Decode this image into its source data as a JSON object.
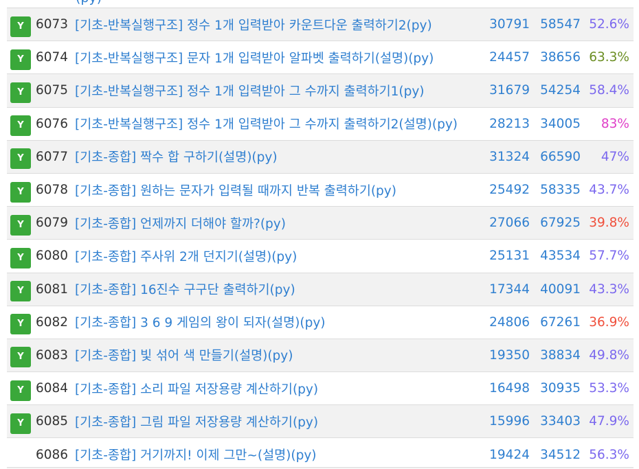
{
  "cut_text": "(py)",
  "badge_label": "Y",
  "rows": [
    {
      "id": "6073",
      "title": "[기초-반복실행구조] 정수 1개 입력받아 카운트다운 출력하기2(py)",
      "solved": "30791",
      "submitted": "58547",
      "rate": "52.6%",
      "rate_color": "#7b68ee",
      "badge": true
    },
    {
      "id": "6074",
      "title": "[기초-반복실행구조] 문자 1개 입력받아 알파벳 출력하기(설명)(py)",
      "solved": "24457",
      "submitted": "38656",
      "rate": "63.3%",
      "rate_color": "#6b8e23",
      "badge": true
    },
    {
      "id": "6075",
      "title": "[기초-반복실행구조] 정수 1개 입력받아 그 수까지 출력하기1(py)",
      "solved": "31679",
      "submitted": "54254",
      "rate": "58.4%",
      "rate_color": "#7b68ee",
      "badge": true
    },
    {
      "id": "6076",
      "title": "[기초-반복실행구조] 정수 1개 입력받아 그 수까지 출력하기2(설명)(py)",
      "solved": "28213",
      "submitted": "34005",
      "rate": "83%",
      "rate_color": "#e040c8",
      "badge": true
    },
    {
      "id": "6077",
      "title": "[기초-종합] 짝수 합 구하기(설명)(py)",
      "solved": "31324",
      "submitted": "66590",
      "rate": "47%",
      "rate_color": "#7b68ee",
      "badge": true
    },
    {
      "id": "6078",
      "title": "[기초-종합] 원하는 문자가 입력될 때까지 반복 출력하기(py)",
      "solved": "25492",
      "submitted": "58335",
      "rate": "43.7%",
      "rate_color": "#7b68ee",
      "badge": true
    },
    {
      "id": "6079",
      "title": "[기초-종합] 언제까지 더해야 할까?(py)",
      "solved": "27066",
      "submitted": "67925",
      "rate": "39.8%",
      "rate_color": "#f0503c",
      "badge": true
    },
    {
      "id": "6080",
      "title": "[기초-종합] 주사위 2개 던지기(설명)(py)",
      "solved": "25131",
      "submitted": "43534",
      "rate": "57.7%",
      "rate_color": "#7b68ee",
      "badge": true
    },
    {
      "id": "6081",
      "title": "[기초-종합] 16진수 구구단 출력하기(py)",
      "solved": "17344",
      "submitted": "40091",
      "rate": "43.3%",
      "rate_color": "#7b68ee",
      "badge": true
    },
    {
      "id": "6082",
      "title": "[기초-종합] 3 6 9 게임의 왕이 되자(설명)(py)",
      "solved": "24806",
      "submitted": "67261",
      "rate": "36.9%",
      "rate_color": "#f0503c",
      "badge": true
    },
    {
      "id": "6083",
      "title": "[기초-종합] 빛 섞어 색 만들기(설명)(py)",
      "solved": "19350",
      "submitted": "38834",
      "rate": "49.8%",
      "rate_color": "#7b68ee",
      "badge": true
    },
    {
      "id": "6084",
      "title": "[기초-종합] 소리 파일 저장용량 계산하기(py)",
      "solved": "16498",
      "submitted": "30935",
      "rate": "53.3%",
      "rate_color": "#7b68ee",
      "badge": true
    },
    {
      "id": "6085",
      "title": "[기초-종합] 그림 파일 저장용량 계산하기(py)",
      "solved": "15996",
      "submitted": "33403",
      "rate": "47.9%",
      "rate_color": "#7b68ee",
      "badge": true
    },
    {
      "id": "6086",
      "title": "[기초-종합] 거기까지! 이제 그만~(설명)(py)",
      "solved": "19424",
      "submitted": "34512",
      "rate": "56.3%",
      "rate_color": "#7b68ee",
      "badge": false
    }
  ]
}
